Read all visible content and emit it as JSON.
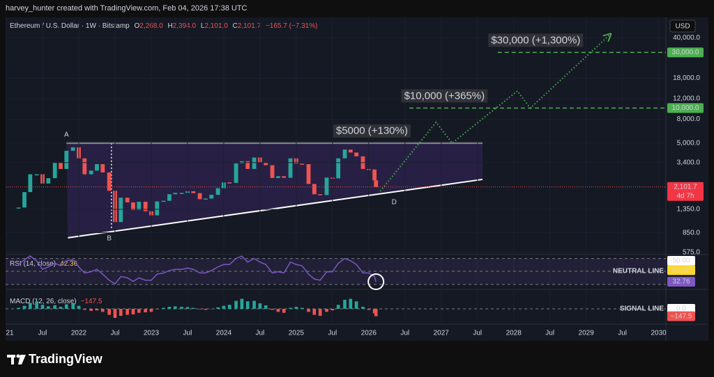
{
  "header": {
    "credit": "harvey_hunter created with TradingView.com, Feb 04, 2026 17:38 UTC"
  },
  "legend": {
    "symbol": "Ethereum / U.S. Dollar · 1W · Bitstamp",
    "ohlc": [
      {
        "key": "O",
        "value": "2,268.0"
      },
      {
        "key": "H",
        "value": "2,394.0"
      },
      {
        "key": "L",
        "value": "2,101.0"
      },
      {
        "key": "C",
        "value": "2,101.7"
      }
    ],
    "change": "−165.7 (−7.31%)"
  },
  "currency": "USD",
  "brand": "TradingView",
  "chart_data": [
    {
      "type": "line",
      "yscale": "log",
      "grid": true,
      "up_color": "#26a69a",
      "down_color": "#ef5350",
      "x": [
        2021.17,
        2021.25,
        2021.33,
        2021.42,
        2021.5,
        2021.58,
        2021.67,
        2021.75,
        2021.83,
        2021.92,
        2022.0,
        2022.08,
        2022.17,
        2022.25,
        2022.33,
        2022.42,
        2022.5,
        2022.58,
        2022.67,
        2022.75,
        2022.83,
        2022.92,
        2023.0,
        2023.08,
        2023.17,
        2023.25,
        2023.33,
        2023.42,
        2023.5,
        2023.58,
        2023.67,
        2023.75,
        2023.83,
        2023.92,
        2024.0,
        2024.08,
        2024.17,
        2024.25,
        2024.33,
        2024.42,
        2024.5,
        2024.58,
        2024.67,
        2024.75,
        2024.83,
        2024.92,
        2025.0,
        2025.08,
        2025.17,
        2025.25,
        2025.33,
        2025.42,
        2025.5,
        2025.58,
        2025.67,
        2025.75,
        2025.83,
        2025.92,
        2026.0,
        2026.08,
        2026.1
      ],
      "values": [
        1400,
        1900,
        2700,
        2700,
        2250,
        2500,
        3400,
        3000,
        4300,
        4600,
        3700,
        2700,
        2900,
        3300,
        2800,
        1950,
        1050,
        1700,
        1550,
        1330,
        1570,
        1300,
        1200,
        1580,
        1600,
        1820,
        1870,
        1870,
        1930,
        1860,
        1650,
        1670,
        1800,
        2050,
        2300,
        2280,
        3350,
        3500,
        3000,
        3760,
        3400,
        3230,
        2510,
        2600,
        2520,
        3700,
        3330,
        3300,
        2230,
        1820,
        1790,
        2530,
        2490,
        3700,
        4400,
        4150,
        3850,
        3000,
        2970,
        2400,
        2101.7
      ],
      "xlim": [
        2020.99,
        2030.1
      ],
      "xticks": [
        {
          "value": 2021,
          "label": "21"
        },
        {
          "value": 2021.5,
          "label": "Jul"
        },
        2022,
        {
          "value": 2022.5,
          "label": "Jul"
        },
        2023,
        {
          "value": 2023.5,
          "label": "Jul"
        },
        2024,
        {
          "value": 2024.5,
          "label": "Jul"
        },
        2025,
        {
          "value": 2025.5,
          "label": "Jul"
        },
        2026,
        {
          "value": 2026.5,
          "label": "Jul"
        },
        2027,
        {
          "value": 2027.5,
          "label": "Jul"
        },
        2028,
        {
          "value": 2028.5,
          "label": "Jul"
        },
        2029,
        {
          "value": 2029.5,
          "label": "Jul"
        },
        2030
      ],
      "ylim": [
        560,
        60000
      ],
      "yticks": [
        {
          "value": 40000,
          "label": "40,000.0"
        },
        {
          "value": 18000,
          "label": "18,000.0"
        },
        {
          "value": 12000,
          "label": "12,000.0"
        },
        {
          "value": 8000,
          "label": "8,000.0"
        },
        {
          "value": 5000,
          "label": "5,000.0"
        },
        {
          "value": 3400,
          "label": "3,400.0"
        },
        {
          "value": 1350,
          "label": "1,350.0"
        },
        {
          "value": 850,
          "label": "850.0"
        },
        {
          "value": 575,
          "label": "575.0"
        }
      ],
      "last_price": {
        "value": 2101.7,
        "label": "2,101.7",
        "countdown": "4d 7h"
      },
      "targets": [
        {
          "value": 30000,
          "label": "30,000.0",
          "start": 2027.78
        },
        {
          "value": 10000,
          "label": "10,000.0",
          "start": 2026.56
        }
      ],
      "annotations": [
        {
          "text": "$5000 (+130%)",
          "x": 2025.51,
          "y": 5000
        },
        {
          "text": "$10,000 (+365%)",
          "x": 2026.45,
          "y": 10000
        },
        {
          "text": "$30,000 (+1,300%)",
          "x": 2027.65,
          "y": 30000
        }
      ],
      "triangle": {
        "top": {
          "x": [
            2021.83,
            2027.57
          ],
          "y": [
            5000,
            5000
          ]
        },
        "bottom": {
          "x": [
            2021.85,
            2027.57
          ],
          "y": [
            770,
            2440
          ]
        }
      },
      "projection": {
        "x": [
          2026.16,
          2026.93,
          2027.15,
          2028.05,
          2028.23,
          2029.33
        ],
        "y": [
          1930,
          7550,
          5000,
          14000,
          10000,
          42800
        ]
      },
      "vertical_marker": {
        "x": 2022.45,
        "y": [
          5000,
          906
        ]
      },
      "pattern_points": [
        {
          "label": "A",
          "x": 2021.83,
          "y": 5900
        },
        {
          "label": "B",
          "x": 2022.42,
          "y": 760
        },
        {
          "label": "D",
          "x": 2026.35,
          "y": 1550
        }
      ]
    },
    {
      "type": "line",
      "title": "RSI (14, close)",
      "color": "#7e57c2",
      "values": [
        47,
        51,
        54,
        50,
        43,
        45,
        48,
        46,
        50,
        51,
        45,
        40,
        41,
        43,
        39,
        34,
        31,
        37,
        36,
        33,
        36,
        34,
        34,
        39,
        40,
        42,
        43,
        43,
        44,
        43,
        40,
        40,
        42,
        45,
        47,
        47,
        52,
        54,
        49,
        52,
        49,
        47,
        40,
        41,
        40,
        49,
        47,
        46,
        39,
        35,
        34,
        41,
        41,
        48,
        52,
        50,
        47,
        40,
        40,
        37,
        32.76
      ],
      "ylim": [
        27.6,
        55.2
      ],
      "bands": [
        52,
        30.5
      ],
      "neutral": 41.4,
      "neutral_label": "NEUTRAL LINE",
      "ma_value": {
        "value": 42.36,
        "label": "42.36"
      },
      "axis_labels": [
        {
          "value": 50,
          "label": "50.00",
          "color": "#ffffff"
        },
        {
          "value": 42.36,
          "label": "42.36",
          "color": "#fdd835"
        },
        {
          "value": 32.76,
          "label": "32.76",
          "color": "#7e57c2"
        }
      ]
    },
    {
      "type": "bar",
      "title": "MACD (12, 26, close)",
      "up_color": "#26a69a",
      "down_color": "#ef5350",
      "values": [
        20,
        60,
        120,
        150,
        80,
        50,
        70,
        40,
        90,
        110,
        60,
        -20,
        -40,
        -30,
        -60,
        -120,
        -180,
        -140,
        -120,
        -110,
        -80,
        -70,
        -60,
        -10,
        20,
        40,
        50,
        40,
        35,
        20,
        -10,
        -20,
        -5,
        30,
        60,
        80,
        160,
        200,
        150,
        160,
        110,
        70,
        -20,
        -60,
        -80,
        20,
        40,
        20,
        -60,
        -120,
        -140,
        -60,
        -30,
        80,
        180,
        200,
        150,
        40,
        -20,
        -90,
        -147.5
      ],
      "ylim": [
        -250,
        250
      ],
      "signal": 0,
      "signal_label": "SIGNAL LINE",
      "last_value": {
        "value": -147.5,
        "label": "−147.5"
      },
      "axis_labels": [
        {
          "value": 0,
          "label": "0.0",
          "color": "#ffffff"
        },
        {
          "value": -147.5,
          "label": "−147.5",
          "color": "#ef5350"
        }
      ]
    }
  ]
}
